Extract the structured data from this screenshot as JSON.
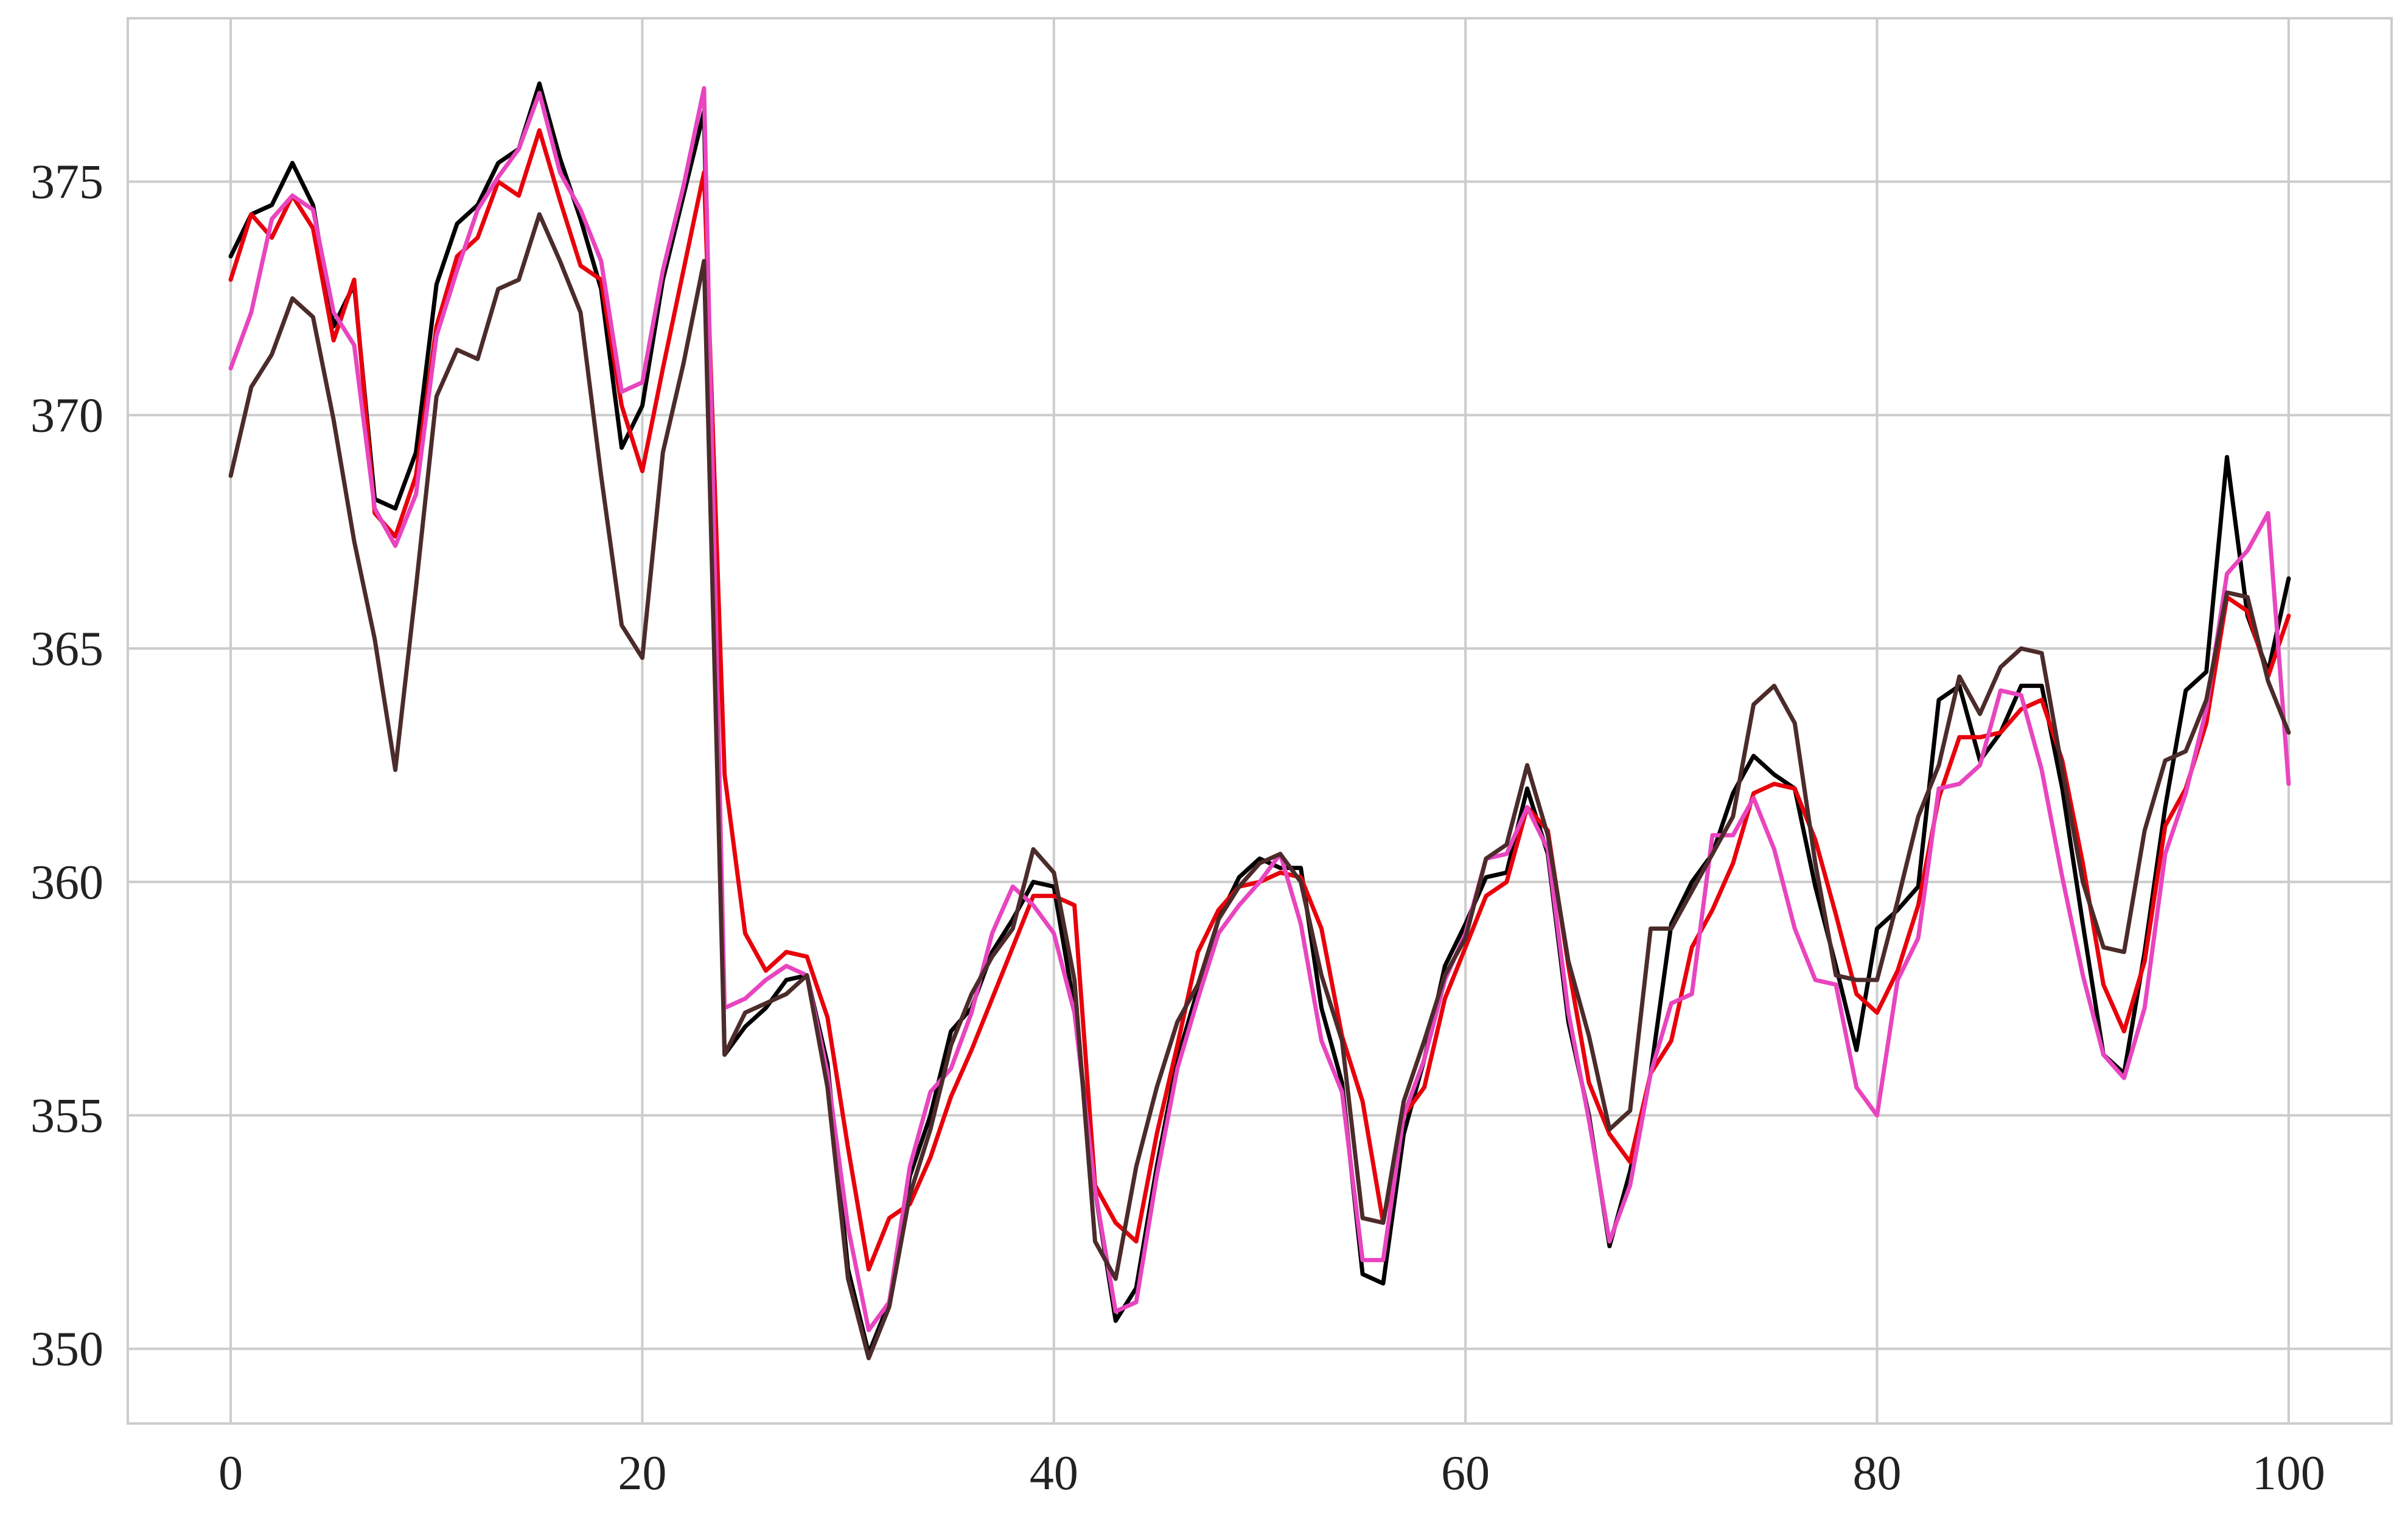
{
  "chart_data": {
    "type": "line",
    "title": "",
    "xlabel": "",
    "ylabel": "",
    "xlim": [
      -5,
      105
    ],
    "ylim": [
      348.4,
      378.5
    ],
    "grid": true,
    "legend": "none",
    "x_ticks": [
      0,
      20,
      40,
      60,
      80,
      100
    ],
    "y_ticks": [
      350,
      355,
      360,
      365,
      370,
      375
    ],
    "x_tick_labels": [
      "0",
      "20",
      "40",
      "60",
      "80",
      "100"
    ],
    "y_tick_labels": [
      "350",
      "355",
      "360",
      "365",
      "370",
      "375"
    ],
    "colors": {
      "grid": "#cccccc",
      "axes_border": "#cccccc",
      "tick_text": "#222222",
      "background": "#ffffff"
    },
    "series": [
      {
        "color": "#000000",
        "values": [
          373.4,
          374.3,
          374.5,
          375.4,
          374.5,
          371.9,
          372.8,
          368.2,
          368.0,
          369.2,
          372.8,
          374.1,
          374.5,
          375.4,
          375.7,
          377.1,
          375.5,
          374.2,
          372.7,
          369.3,
          370.2,
          372.9,
          374.7,
          376.5,
          356.3,
          356.9,
          357.3,
          357.9,
          358.0,
          356.1,
          351.7,
          349.9,
          351.0,
          353.7,
          355.0,
          356.8,
          357.3,
          358.5,
          359.2,
          360.0,
          359.9,
          357.3,
          353.4,
          350.6,
          351.3,
          353.9,
          356.2,
          357.7,
          359.2,
          360.1,
          360.5,
          360.3,
          360.3,
          357.3,
          355.7,
          351.6,
          351.4,
          354.6,
          356.2,
          358.2,
          359.1,
          360.1,
          360.2,
          362.0,
          360.6,
          357.0,
          355.0,
          352.2,
          353.8,
          355.9,
          359.1,
          360.0,
          360.6,
          361.9,
          362.7,
          362.3,
          362.0,
          359.9,
          358.2,
          356.4,
          359.0,
          359.4,
          359.9,
          363.9,
          364.2,
          362.6,
          363.2,
          364.2,
          364.2,
          362.0,
          359.1,
          356.3,
          355.9,
          358.5,
          361.6,
          364.1,
          364.5,
          369.1,
          365.7,
          364.5,
          366.5
        ]
      },
      {
        "color": "#e8000b",
        "values": [
          372.9,
          374.3,
          373.8,
          374.7,
          374.0,
          371.6,
          372.9,
          367.9,
          367.4,
          368.7,
          371.9,
          373.4,
          373.8,
          375.0,
          374.7,
          376.1,
          374.6,
          373.2,
          372.9,
          370.2,
          368.8,
          371.0,
          373.1,
          375.2,
          362.3,
          358.9,
          358.1,
          358.5,
          358.4,
          357.1,
          354.3,
          351.7,
          352.8,
          353.1,
          354.1,
          355.4,
          356.4,
          357.5,
          358.6,
          359.7,
          359.7,
          359.5,
          353.5,
          352.7,
          352.3,
          354.6,
          356.5,
          358.5,
          359.4,
          359.9,
          360.0,
          360.2,
          360.1,
          359.0,
          356.7,
          355.3,
          352.7,
          355.0,
          355.6,
          357.5,
          358.6,
          359.7,
          360.0,
          361.6,
          361.1,
          358.2,
          355.7,
          354.6,
          354.0,
          355.9,
          356.6,
          358.6,
          359.4,
          360.4,
          361.9,
          362.1,
          362.0,
          360.9,
          359.3,
          357.6,
          357.2,
          358.1,
          359.5,
          361.8,
          363.1,
          363.1,
          363.2,
          363.7,
          363.9,
          362.6,
          360.4,
          357.8,
          356.8,
          358.3,
          361.2,
          362.0,
          363.4,
          366.1,
          365.8,
          364.4,
          365.7
        ]
      },
      {
        "color": "#e845bf",
        "values": [
          371.0,
          372.2,
          374.2,
          374.7,
          374.4,
          372.2,
          371.5,
          368.0,
          367.2,
          368.3,
          371.7,
          373.1,
          374.4,
          375.1,
          375.7,
          376.9,
          375.2,
          374.4,
          373.3,
          370.5,
          370.7,
          373.1,
          374.9,
          377.0,
          357.3,
          357.5,
          357.9,
          358.2,
          358.0,
          355.9,
          352.6,
          350.4,
          351.0,
          353.9,
          355.5,
          356.0,
          357.2,
          358.9,
          359.9,
          359.5,
          358.9,
          357.2,
          353.4,
          350.8,
          351.0,
          353.7,
          356.0,
          357.5,
          358.9,
          359.5,
          360.0,
          360.6,
          359.1,
          356.6,
          355.5,
          351.9,
          351.9,
          355.0,
          356.2,
          357.9,
          358.9,
          360.5,
          360.6,
          361.6,
          360.7,
          357.2,
          354.9,
          352.3,
          353.5,
          355.9,
          357.4,
          357.6,
          361.0,
          361.0,
          361.8,
          360.7,
          359.0,
          357.9,
          357.8,
          355.6,
          355.0,
          357.9,
          358.8,
          362.0,
          362.1,
          362.5,
          364.1,
          364.0,
          362.4,
          360.1,
          358.0,
          356.3,
          355.8,
          357.3,
          360.6,
          361.9,
          363.7,
          366.6,
          367.1,
          367.9,
          362.1
        ]
      },
      {
        "color": "#4c2b2b",
        "values": [
          368.7,
          370.6,
          371.3,
          372.5,
          372.1,
          369.9,
          367.3,
          365.2,
          362.4,
          366.3,
          370.4,
          371.4,
          371.2,
          372.7,
          372.9,
          374.3,
          373.3,
          372.2,
          368.7,
          365.5,
          364.8,
          369.2,
          371.1,
          373.3,
          356.3,
          357.2,
          357.4,
          357.6,
          358.0,
          355.6,
          351.5,
          349.8,
          350.9,
          353.3,
          354.7,
          356.5,
          357.6,
          358.4,
          359.0,
          360.7,
          360.2,
          357.9,
          352.3,
          351.5,
          353.9,
          355.6,
          357.0,
          357.8,
          359.2,
          359.9,
          360.4,
          360.6,
          360.0,
          358.0,
          356.6,
          352.8,
          352.7,
          355.3,
          356.6,
          358.0,
          358.8,
          360.5,
          360.8,
          362.5,
          361.0,
          358.3,
          356.7,
          354.7,
          355.1,
          359.0,
          359.0,
          359.8,
          360.6,
          361.4,
          363.8,
          364.2,
          363.4,
          360.4,
          358.0,
          357.9,
          357.9,
          359.6,
          361.4,
          362.5,
          364.4,
          363.6,
          364.6,
          365.0,
          364.9,
          362.4,
          360.0,
          358.6,
          358.5,
          361.1,
          362.6,
          362.8,
          363.9,
          366.2,
          366.1,
          364.3,
          363.2
        ]
      }
    ]
  }
}
